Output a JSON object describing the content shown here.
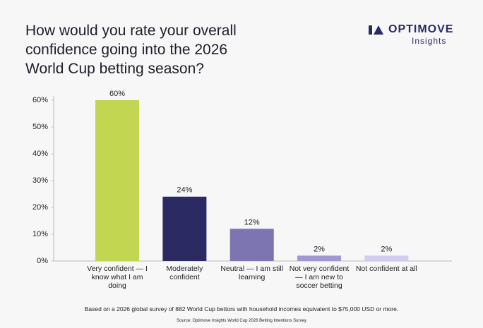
{
  "chart_data": {
    "type": "bar",
    "title": "How would you rate your overall confidence going into the 2026 World Cup betting season?",
    "categories": [
      "Very confident — I know what I am doing",
      "Moderately confident",
      "Neutral — I am still learning",
      "Not very confident — I am new to soccer betting",
      "Not confident at all"
    ],
    "values": [
      60,
      24,
      12,
      2,
      2
    ],
    "value_labels": [
      "60%",
      "24%",
      "12%",
      "2%",
      "2%"
    ],
    "colors": [
      "#c3d651",
      "#2b2a63",
      "#7c75b1",
      "#a099d1",
      "#d1cdec"
    ],
    "ylim": [
      0,
      60
    ],
    "yticks": [
      {
        "value": 0,
        "label": "0%"
      },
      {
        "value": 10,
        "label": "10%"
      },
      {
        "value": 20,
        "label": "20%"
      },
      {
        "value": 30,
        "label": "30%"
      },
      {
        "value": 40,
        "label": "40%"
      },
      {
        "value": 50,
        "label": "50%"
      },
      {
        "value": 60,
        "label": "60%"
      }
    ],
    "footnote": "Based on a 2026 global survey of 882 World Cup bettors with household incomes equivalent to $75,000 USD or more.",
    "source": "Source: Optimove Insights World Cup 2026 Betting Intentions Survey"
  },
  "brand": {
    "name": "OPTIMOVE",
    "tagline": "Insights"
  }
}
